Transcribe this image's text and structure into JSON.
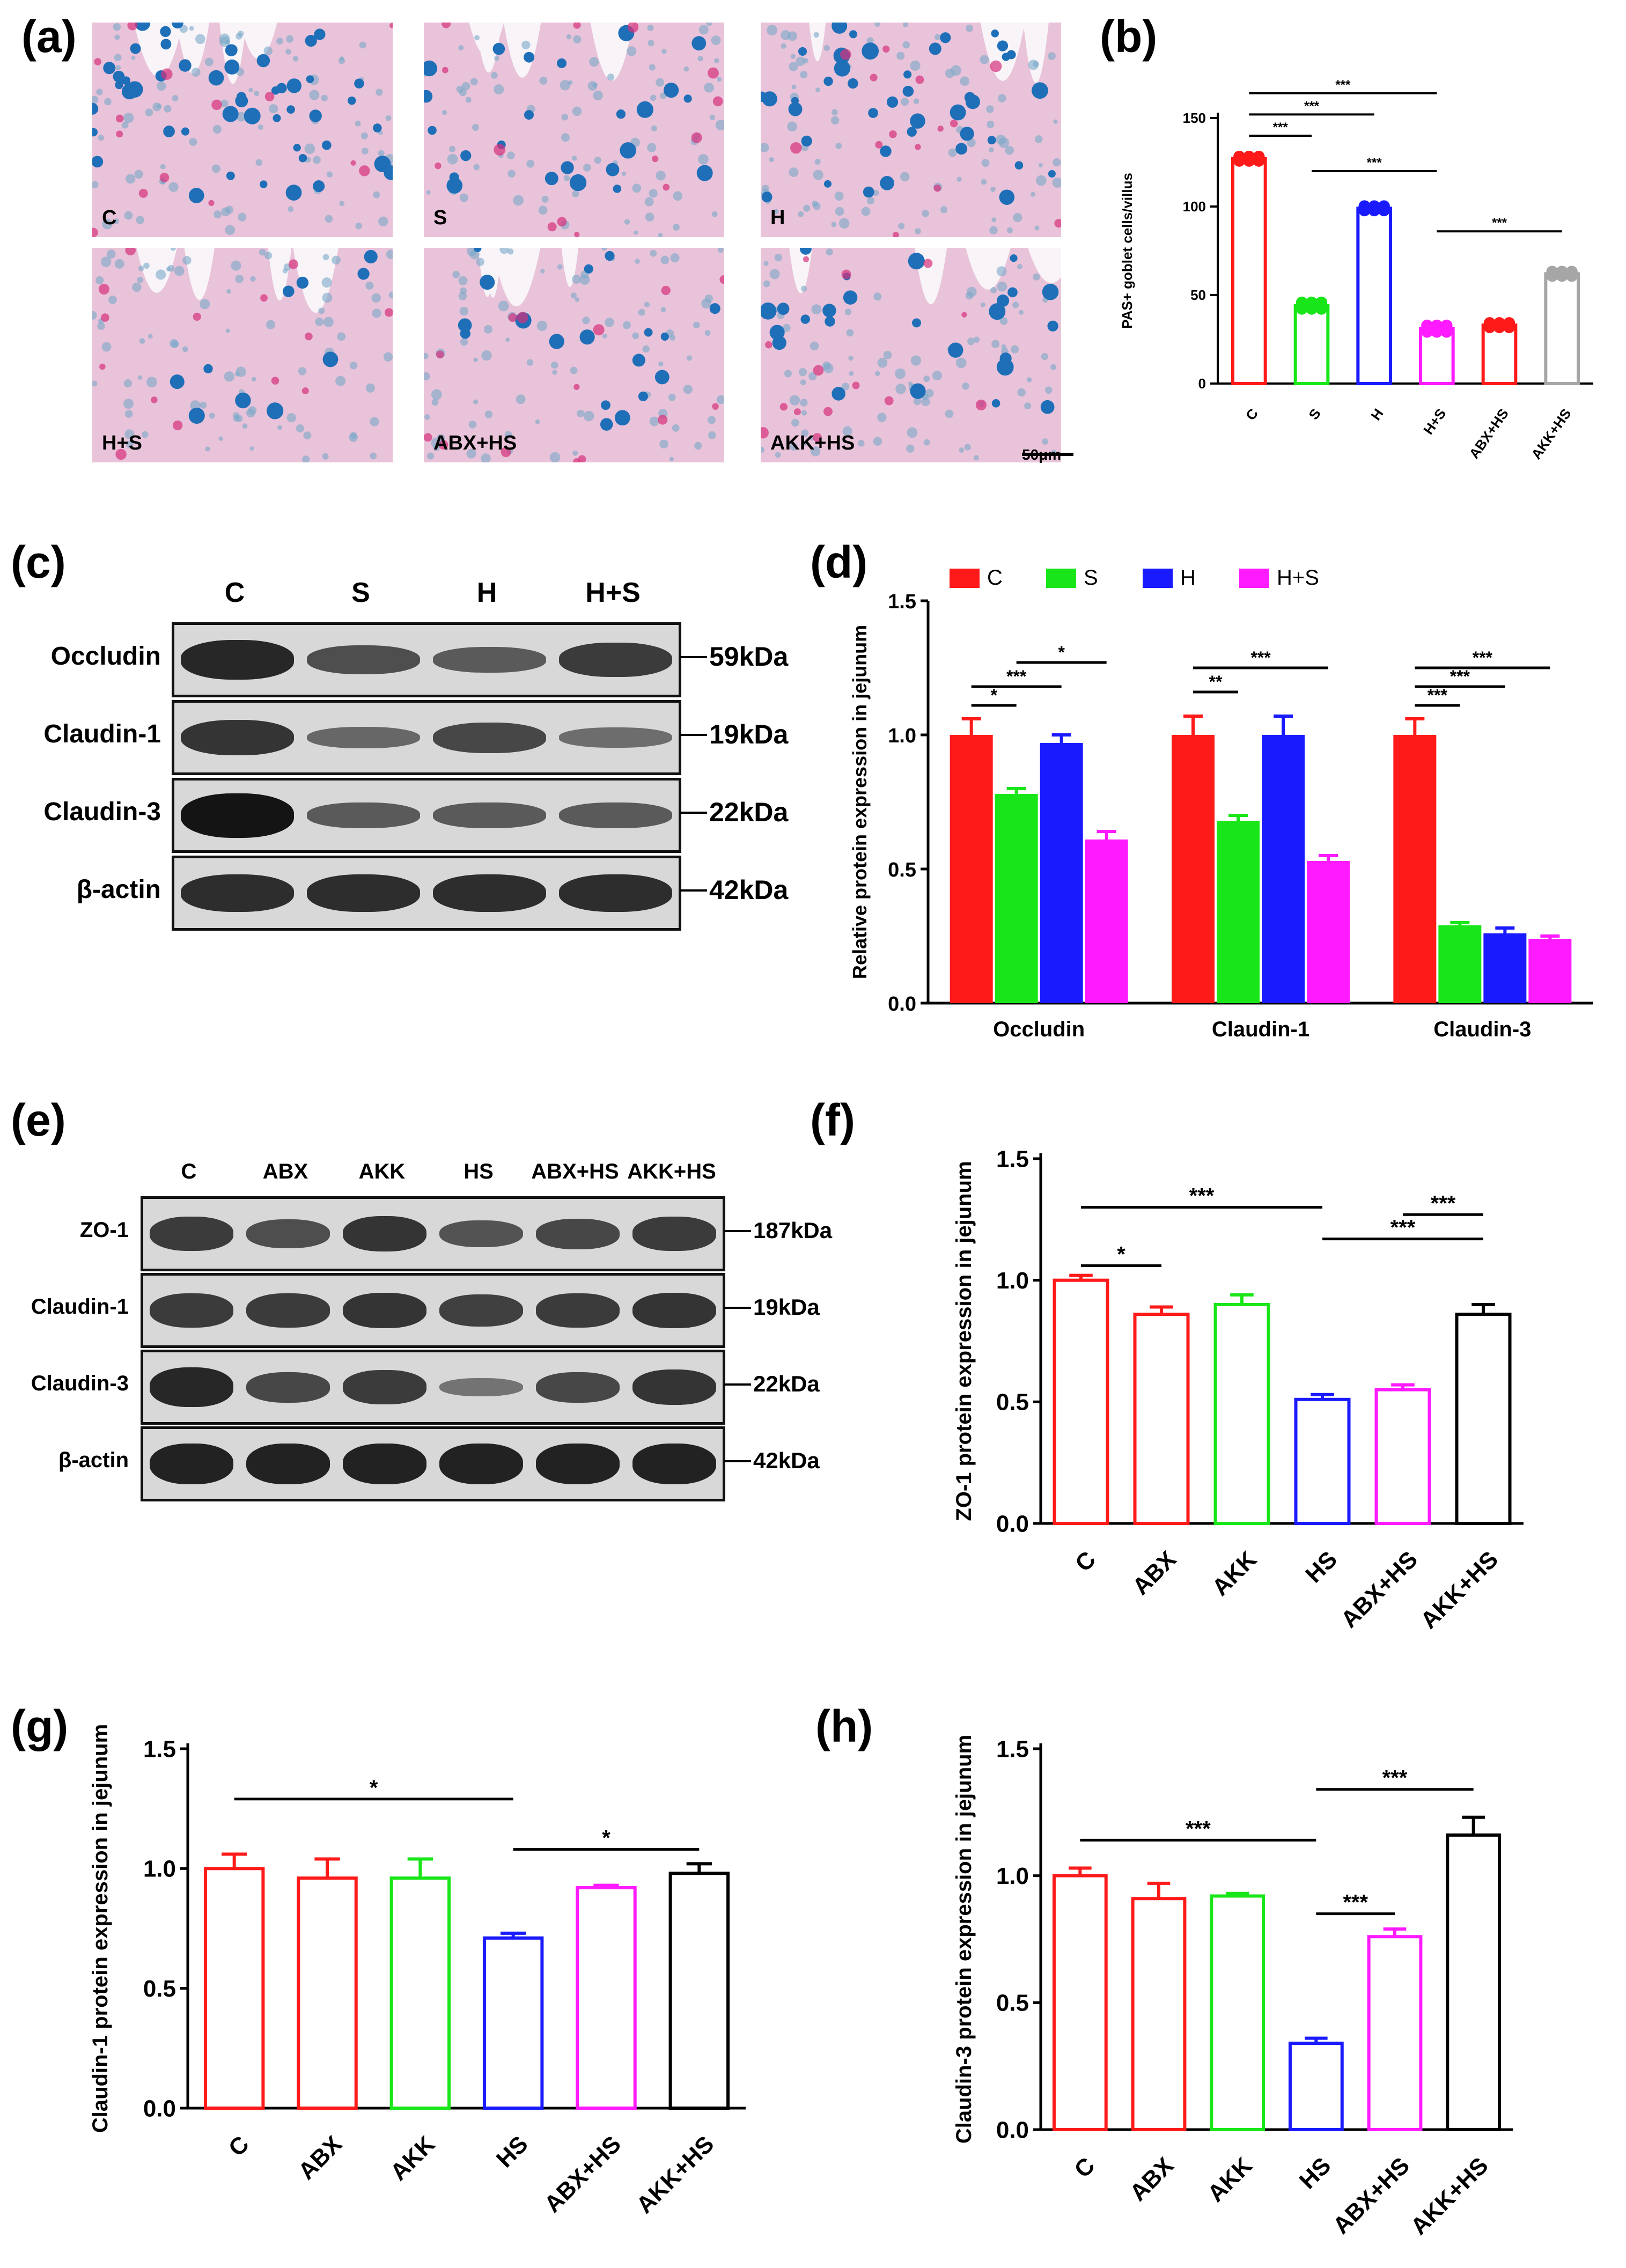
{
  "panels": {
    "a": {
      "label": "(a)",
      "images": [
        {
          "label": "C"
        },
        {
          "label": "S"
        },
        {
          "label": "H"
        },
        {
          "label": "H+S"
        },
        {
          "label": "ABX+HS"
        },
        {
          "label": "AKK+HS"
        }
      ],
      "scale_bar": "50μm"
    },
    "b": {
      "label": "(b)"
    },
    "c": {
      "label": "(c)",
      "lanes": [
        "C",
        "S",
        "H",
        "H+S"
      ],
      "rows": [
        {
          "protein": "Occludin",
          "size": "59kDa"
        },
        {
          "protein": "Claudin-1",
          "size": "19kDa"
        },
        {
          "protein": "Claudin-3",
          "size": "22kDa"
        },
        {
          "protein": "β-actin",
          "size": "42kDa"
        }
      ]
    },
    "d": {
      "label": "(d)"
    },
    "e": {
      "label": "(e)",
      "lanes": [
        "C",
        "ABX",
        "AKK",
        "HS",
        "ABX+HS",
        "AKK+HS"
      ],
      "rows": [
        {
          "protein": "ZO-1",
          "size": "187kDa"
        },
        {
          "protein": "Claudin-1",
          "size": "19kDa"
        },
        {
          "protein": "Claudin-3",
          "size": "22kDa"
        },
        {
          "protein": "β-actin",
          "size": "42kDa"
        }
      ]
    },
    "f": {
      "label": "(f)"
    },
    "g": {
      "label": "(g)"
    },
    "h": {
      "label": "(h)"
    }
  },
  "colors": {
    "red": "#ff1a1a",
    "green": "#19e619",
    "blue": "#1a1aff",
    "magenta": "#ff1aff",
    "grey": "#a6a6a6",
    "black": "#000000"
  },
  "chart_data": [
    {
      "id": "b",
      "type": "bar",
      "ylabel": "PAS+ goblet cells/villus",
      "categories": [
        "C",
        "S",
        "H",
        "H+S",
        "ABX+HS",
        "AKK+HS"
      ],
      "values": [
        127,
        44,
        99,
        31,
        33,
        62
      ],
      "errors": [
        2,
        3,
        2,
        3,
        2,
        2
      ],
      "colors": [
        "red",
        "green",
        "blue",
        "magenta",
        "red",
        "grey"
      ],
      "ylim": [
        0,
        150
      ],
      "yticks": [
        0,
        50,
        100,
        150
      ],
      "sig": [
        {
          "from": 0,
          "to": 1,
          "label": "***",
          "y": 140
        },
        {
          "from": 0,
          "to": 2,
          "label": "***",
          "y": 152
        },
        {
          "from": 0,
          "to": 3,
          "label": "***",
          "y": 164
        },
        {
          "from": 1,
          "to": 3,
          "label": "***",
          "y": 120
        },
        {
          "from": 3,
          "to": 5,
          "label": "***",
          "y": 86
        }
      ]
    },
    {
      "id": "d",
      "type": "bar",
      "ylabel": "Relative protein expression in jejunum",
      "groups": [
        "Occludin",
        "Claudin-1",
        "Claudin-3"
      ],
      "series": [
        {
          "name": "C",
          "color": "red",
          "values": [
            1.0,
            1.0,
            1.0
          ],
          "errors": [
            0.06,
            0.07,
            0.06
          ]
        },
        {
          "name": "S",
          "color": "green",
          "values": [
            0.78,
            0.68,
            0.29
          ],
          "errors": [
            0.02,
            0.02,
            0.01
          ]
        },
        {
          "name": "H",
          "color": "blue",
          "values": [
            0.97,
            1.0,
            0.26
          ],
          "errors": [
            0.03,
            0.07,
            0.02
          ]
        },
        {
          "name": "H+S",
          "color": "magenta",
          "values": [
            0.61,
            0.53,
            0.24
          ],
          "errors": [
            0.03,
            0.02,
            0.01
          ]
        }
      ],
      "ylim": [
        0,
        1.5
      ],
      "yticks": [
        "0.0",
        "0.5",
        "1.0",
        "1.5"
      ],
      "sig": [
        {
          "group": 0,
          "from": 0,
          "to": 1,
          "label": "*",
          "y": 1.11
        },
        {
          "group": 0,
          "from": 0,
          "to": 2,
          "label": "***",
          "y": 1.18
        },
        {
          "group": 0,
          "from": 1,
          "to": 3,
          "label": "*",
          "y": 1.27
        },
        {
          "group": 1,
          "from": 0,
          "to": 1,
          "label": "**",
          "y": 1.16
        },
        {
          "group": 1,
          "from": 0,
          "to": 3,
          "label": "***",
          "y": 1.25
        },
        {
          "group": 2,
          "from": 0,
          "to": 1,
          "label": "***",
          "y": 1.11
        },
        {
          "group": 2,
          "from": 0,
          "to": 2,
          "label": "***",
          "y": 1.18
        },
        {
          "group": 2,
          "from": 0,
          "to": 3,
          "label": "***",
          "y": 1.25
        }
      ]
    },
    {
      "id": "f",
      "type": "bar",
      "ylabel": "ZO-1 protein expression in jejunum",
      "categories": [
        "C",
        "ABX",
        "AKK",
        "HS",
        "ABX+HS",
        "AKK+HS"
      ],
      "values": [
        1.0,
        0.86,
        0.9,
        0.51,
        0.55,
        0.86
      ],
      "errors": [
        0.02,
        0.03,
        0.04,
        0.02,
        0.02,
        0.04
      ],
      "colors": [
        "red",
        "red",
        "green",
        "blue",
        "magenta",
        "black"
      ],
      "ylim": [
        0,
        1.5
      ],
      "yticks": [
        "0.0",
        "0.5",
        "1.0",
        "1.5"
      ],
      "sig": [
        {
          "from": 0,
          "to": 1,
          "label": "*",
          "y": 1.06
        },
        {
          "from": 0,
          "to": 3,
          "label": "***",
          "y": 1.3
        },
        {
          "from": 3,
          "to": 5,
          "label": "***",
          "y": 1.17
        },
        {
          "from": 4,
          "to": 5,
          "label": "***",
          "y": 1.27
        }
      ]
    },
    {
      "id": "g",
      "type": "bar",
      "ylabel": "Claudin-1 protein expression in jejunum",
      "categories": [
        "C",
        "ABX",
        "AKK",
        "HS",
        "ABX+HS",
        "AKK+HS"
      ],
      "values": [
        1.0,
        0.96,
        0.96,
        0.71,
        0.92,
        0.98
      ],
      "errors": [
        0.06,
        0.08,
        0.08,
        0.02,
        0.01,
        0.04
      ],
      "colors": [
        "red",
        "red",
        "green",
        "blue",
        "magenta",
        "black"
      ],
      "ylim": [
        0,
        1.5
      ],
      "yticks": [
        "0.0",
        "0.5",
        "1.0",
        "1.5"
      ],
      "sig": [
        {
          "from": 0,
          "to": 3,
          "label": "*",
          "y": 1.29
        },
        {
          "from": 3,
          "to": 5,
          "label": "*",
          "y": 1.08
        }
      ]
    },
    {
      "id": "h",
      "type": "bar",
      "ylabel": "Claudin-3 protein expression in jejunum",
      "categories": [
        "C",
        "ABX",
        "AKK",
        "HS",
        "ABX+HS",
        "AKK+HS"
      ],
      "values": [
        1.0,
        0.91,
        0.92,
        0.34,
        0.76,
        1.16
      ],
      "errors": [
        0.03,
        0.06,
        0.01,
        0.02,
        0.03,
        0.07
      ],
      "colors": [
        "red",
        "red",
        "green",
        "blue",
        "magenta",
        "black"
      ],
      "ylim": [
        0,
        1.5
      ],
      "yticks": [
        "0.0",
        "0.5",
        "1.0",
        "1.5"
      ],
      "sig": [
        {
          "from": 0,
          "to": 3,
          "label": "***",
          "y": 1.14
        },
        {
          "from": 3,
          "to": 5,
          "label": "***",
          "y": 1.34
        },
        {
          "from": 3,
          "to": 4,
          "label": "***",
          "y": 0.85
        }
      ]
    }
  ]
}
